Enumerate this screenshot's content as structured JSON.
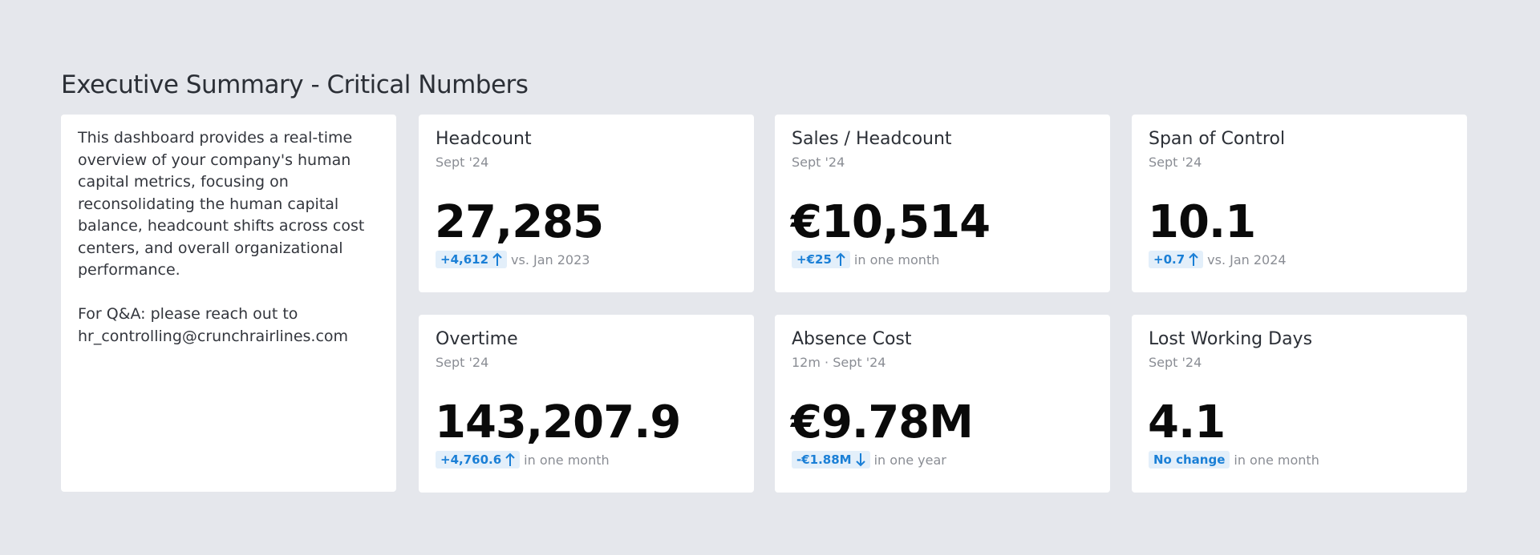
{
  "header": {
    "title": "Executive Summary - Critical Numbers"
  },
  "intro": {
    "paragraphs": [
      "This dashboard provides a real-time overview of your company's human capital metrics, focusing on reconsolidating the human capital balance, headcount shifts across cost centers, and overall organizational performance.",
      "For Q&A: please reach out to hr_controlling@crunchrairlines.com"
    ]
  },
  "kpis": [
    {
      "title": "Headcount",
      "period": "Sept '24",
      "value": "27,285",
      "delta": "+4,612",
      "trend": "up",
      "comparison": "vs. Jan 2023"
    },
    {
      "title": "Sales / Headcount",
      "period": "Sept '24",
      "value": "€10,514",
      "delta": "+€25",
      "trend": "up",
      "comparison": "in one month"
    },
    {
      "title": "Span of Control",
      "period": "Sept '24",
      "value": "10.1",
      "delta": "+0.7",
      "trend": "up",
      "comparison": "vs. Jan 2024"
    },
    {
      "title": "Overtime",
      "period": "Sept '24",
      "value": "143,207.9",
      "delta": "+4,760.6",
      "trend": "up",
      "comparison": "in one month"
    },
    {
      "title": "Absence Cost",
      "period": "12m · Sept '24",
      "value": "€9.78M",
      "delta": "-€1.88M",
      "trend": "down",
      "comparison": "in one year"
    },
    {
      "title": "Lost Working Days",
      "period": "Sept '24",
      "value": "4.1",
      "delta": "No change",
      "trend": "none",
      "comparison": "in one month"
    }
  ]
}
